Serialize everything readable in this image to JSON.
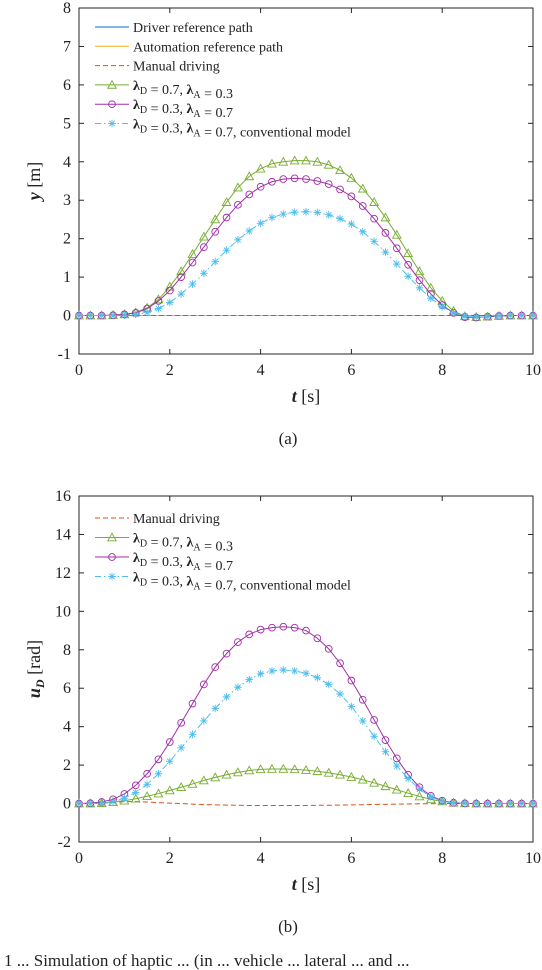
{
  "chart_data": [
    {
      "type": "line",
      "panel_label": "(a)",
      "xlabel": "t [s]",
      "ylabel": "y [m]",
      "xlim": [
        0,
        10
      ],
      "ylim": [
        -1,
        8
      ],
      "xticks": [
        0,
        2,
        4,
        6,
        8,
        10
      ],
      "yticks": [
        -1,
        0,
        1,
        2,
        3,
        4,
        5,
        6,
        7,
        8
      ],
      "legend_position": "top-left",
      "x": [
        0,
        0.25,
        0.5,
        0.75,
        1.0,
        1.25,
        1.5,
        1.75,
        2.0,
        2.25,
        2.5,
        2.75,
        3.0,
        3.25,
        3.5,
        3.75,
        4.0,
        4.25,
        4.5,
        4.75,
        5.0,
        5.25,
        5.5,
        5.75,
        6.0,
        6.25,
        6.5,
        6.75,
        7.0,
        7.25,
        7.5,
        7.75,
        8.0,
        8.25,
        8.5,
        8.75,
        9.0,
        9.25,
        9.5,
        9.75,
        10.0
      ],
      "series": [
        {
          "name": "Driver reference path",
          "color": "#0072bd",
          "style": "solid",
          "marker": "none",
          "values": [
            0,
            0,
            0,
            0,
            0,
            0,
            0,
            0,
            0,
            0,
            0,
            0,
            0,
            0,
            0,
            0,
            0,
            0,
            0,
            0,
            0,
            0,
            0,
            0,
            0,
            0,
            0,
            0,
            0,
            0,
            0,
            0,
            0,
            0,
            0,
            0,
            0,
            0,
            0,
            0,
            0
          ]
        },
        {
          "name": "Automation reference path",
          "color": "#edb120",
          "style": "solid",
          "marker": "none",
          "values": [
            0,
            0,
            0,
            0,
            0,
            0,
            0,
            0,
            0,
            0,
            0,
            0,
            0,
            0,
            0,
            0,
            0,
            0,
            0,
            0,
            0,
            0,
            0,
            0,
            0,
            0,
            0,
            0,
            0,
            0,
            0,
            0,
            0,
            0,
            0,
            0,
            0,
            0,
            0,
            0,
            0
          ]
        },
        {
          "name": "Manual driving",
          "color": "#d95319",
          "style": "dashed",
          "marker": "none",
          "values": [
            0,
            0,
            0,
            0,
            0,
            0,
            0,
            0,
            0,
            0,
            0,
            0,
            0,
            0,
            0,
            0,
            0,
            0,
            0,
            0,
            0,
            0,
            0,
            0,
            0,
            0,
            0,
            0,
            0,
            0,
            0,
            0,
            0,
            0,
            0,
            0,
            0,
            0,
            0,
            0,
            0
          ]
        },
        {
          "name": "λD = 0.7, λA = 0.3",
          "color": "#77ac30",
          "style": "solid",
          "marker": "triangle",
          "values": [
            0,
            0,
            0,
            0.01,
            0.03,
            0.08,
            0.2,
            0.42,
            0.75,
            1.15,
            1.6,
            2.05,
            2.5,
            2.95,
            3.33,
            3.62,
            3.82,
            3.95,
            4.0,
            4.03,
            4.03,
            4.0,
            3.92,
            3.78,
            3.58,
            3.3,
            2.95,
            2.55,
            2.1,
            1.62,
            1.15,
            0.72,
            0.38,
            0.12,
            -0.02,
            -0.04,
            -0.03,
            -0.01,
            0,
            0,
            0
          ]
        },
        {
          "name": "λD = 0.3, λA = 0.7",
          "color": "#a12ea8",
          "style": "solid",
          "marker": "circle",
          "values": [
            0,
            0,
            0,
            0.01,
            0.03,
            0.07,
            0.18,
            0.38,
            0.65,
            1.0,
            1.38,
            1.78,
            2.18,
            2.55,
            2.88,
            3.15,
            3.35,
            3.48,
            3.55,
            3.57,
            3.55,
            3.5,
            3.42,
            3.28,
            3.1,
            2.85,
            2.52,
            2.15,
            1.75,
            1.32,
            0.92,
            0.56,
            0.27,
            0.07,
            -0.04,
            -0.05,
            -0.03,
            -0.01,
            0,
            0,
            0
          ]
        },
        {
          "name": "λD = 0.3, λA = 0.7, conventional model",
          "color": "#4dbeee",
          "style": "dashdot",
          "marker": "star",
          "values": [
            0,
            0,
            0,
            0,
            0.01,
            0.03,
            0.08,
            0.18,
            0.34,
            0.56,
            0.82,
            1.1,
            1.4,
            1.7,
            1.97,
            2.2,
            2.4,
            2.55,
            2.64,
            2.69,
            2.7,
            2.68,
            2.62,
            2.52,
            2.38,
            2.18,
            1.93,
            1.65,
            1.34,
            1.02,
            0.72,
            0.45,
            0.23,
            0.07,
            -0.02,
            -0.04,
            -0.03,
            -0.01,
            0,
            0,
            0
          ]
        }
      ]
    },
    {
      "type": "line",
      "panel_label": "(b)",
      "xlabel": "t [s]",
      "ylabel": "uD [rad]",
      "xlim": [
        0,
        10
      ],
      "ylim": [
        -2,
        16
      ],
      "xticks": [
        0,
        2,
        4,
        6,
        8,
        10
      ],
      "yticks": [
        -2,
        0,
        2,
        4,
        6,
        8,
        10,
        12,
        14,
        16
      ],
      "legend_position": "top-left",
      "x": [
        0,
        0.25,
        0.5,
        0.75,
        1.0,
        1.25,
        1.5,
        1.75,
        2.0,
        2.25,
        2.5,
        2.75,
        3.0,
        3.25,
        3.5,
        3.75,
        4.0,
        4.25,
        4.5,
        4.75,
        5.0,
        5.25,
        5.5,
        5.75,
        6.0,
        6.25,
        6.5,
        6.75,
        7.0,
        7.25,
        7.5,
        7.75,
        8.0,
        8.25,
        8.5,
        8.75,
        9.0,
        9.25,
        9.5,
        9.75,
        10.0
      ],
      "series": [
        {
          "name": "Manual driving",
          "color": "#d95319",
          "style": "dashed",
          "marker": "none",
          "values": [
            0,
            0,
            0.02,
            0.06,
            0.1,
            0.1,
            0.08,
            0.05,
            0.02,
            0,
            -0.03,
            -0.05,
            -0.07,
            -0.08,
            -0.09,
            -0.1,
            -0.1,
            -0.1,
            -0.1,
            -0.1,
            -0.1,
            -0.09,
            -0.09,
            -0.08,
            -0.07,
            -0.06,
            -0.05,
            -0.04,
            -0.03,
            -0.02,
            -0.01,
            -0.01,
            0,
            0,
            0,
            0,
            0,
            0,
            0,
            0,
            0
          ]
        },
        {
          "name": "λD = 0.7, λA = 0.3",
          "color": "#77ac30",
          "style": "solid",
          "marker": "triangle",
          "values": [
            0,
            0,
            0.02,
            0.08,
            0.15,
            0.25,
            0.38,
            0.52,
            0.68,
            0.85,
            1.02,
            1.2,
            1.36,
            1.5,
            1.62,
            1.72,
            1.78,
            1.8,
            1.8,
            1.78,
            1.74,
            1.68,
            1.6,
            1.5,
            1.38,
            1.24,
            1.08,
            0.9,
            0.72,
            0.54,
            0.37,
            0.22,
            0.11,
            0.04,
            0.01,
            0,
            0,
            0,
            0,
            0,
            0
          ]
        },
        {
          "name": "λD = 0.3, λA = 0.7",
          "color": "#a12ea8",
          "style": "solid",
          "marker": "circle",
          "values": [
            0,
            0.02,
            0.08,
            0.22,
            0.5,
            0.95,
            1.55,
            2.3,
            3.2,
            4.2,
            5.2,
            6.2,
            7.1,
            7.8,
            8.4,
            8.8,
            9.05,
            9.15,
            9.2,
            9.15,
            9.0,
            8.6,
            8.05,
            7.3,
            6.4,
            5.4,
            4.35,
            3.3,
            2.35,
            1.5,
            0.85,
            0.4,
            0.15,
            0.04,
            0.01,
            0,
            0,
            0,
            0,
            0,
            0
          ]
        },
        {
          "name": "λD = 0.3, λA = 0.7, conventional model",
          "color": "#4dbeee",
          "style": "dashdot",
          "marker": "star",
          "values": [
            0,
            0,
            0.02,
            0.1,
            0.28,
            0.58,
            1.0,
            1.55,
            2.2,
            2.9,
            3.6,
            4.3,
            4.95,
            5.55,
            6.05,
            6.45,
            6.75,
            6.9,
            6.95,
            6.9,
            6.78,
            6.55,
            6.2,
            5.7,
            5.05,
            4.3,
            3.5,
            2.7,
            1.95,
            1.3,
            0.75,
            0.35,
            0.12,
            0.03,
            0.01,
            0,
            0,
            0,
            0,
            0,
            0
          ]
        }
      ]
    }
  ],
  "bottom_text": "1 ... Simulation of haptic ... (in ... vehicle ... lateral ... and ..."
}
